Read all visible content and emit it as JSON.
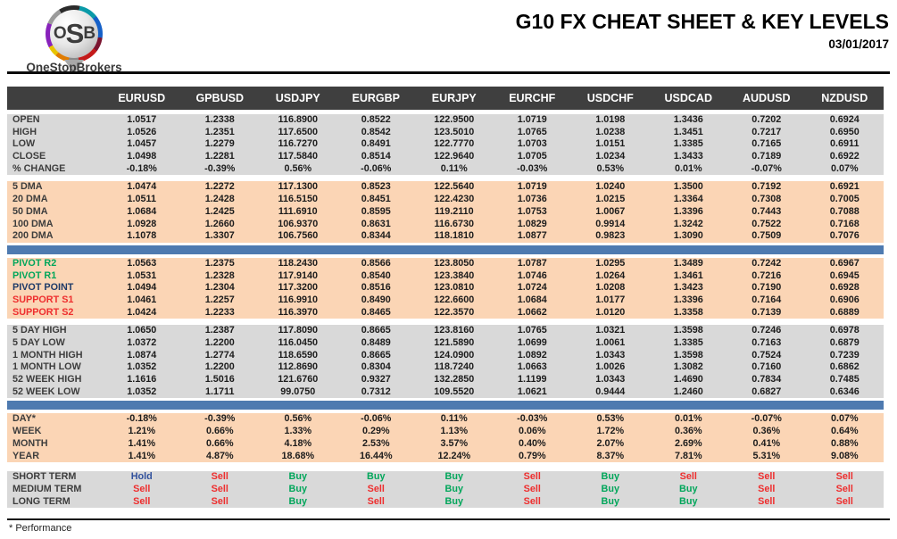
{
  "header": {
    "logo": {
      "letters": [
        "O",
        "S",
        "B"
      ],
      "name": "OneStopBrokers"
    },
    "title": "G10 FX CHEAT SHEET & KEY LEVELS",
    "date": "03/01/2017"
  },
  "table": {
    "columns": [
      "EURUSD",
      "GPBUSD",
      "USDJPY",
      "EURGBP",
      "EURJPY",
      "EURCHF",
      "USDCHF",
      "USDCAD",
      "AUDUSD",
      "NZDUSD"
    ],
    "sections": [
      {
        "id": "ohlc",
        "bg": "gray",
        "rows": [
          {
            "label": "OPEN",
            "values": [
              "1.0517",
              "1.2338",
              "116.8900",
              "0.8522",
              "122.9500",
              "1.0719",
              "1.0198",
              "1.3436",
              "0.7202",
              "0.6924"
            ]
          },
          {
            "label": "HIGH",
            "values": [
              "1.0526",
              "1.2351",
              "117.6500",
              "0.8542",
              "123.5010",
              "1.0765",
              "1.0238",
              "1.3451",
              "0.7217",
              "0.6950"
            ]
          },
          {
            "label": "LOW",
            "values": [
              "1.0457",
              "1.2279",
              "116.7270",
              "0.8491",
              "122.7770",
              "1.0703",
              "1.0151",
              "1.3385",
              "0.7165",
              "0.6911"
            ]
          },
          {
            "label": "CLOSE",
            "values": [
              "1.0498",
              "1.2281",
              "117.5840",
              "0.8514",
              "122.9640",
              "1.0705",
              "1.0234",
              "1.3433",
              "0.7189",
              "0.6922"
            ]
          },
          {
            "label": "% CHANGE",
            "values": [
              "-0.18%",
              "-0.39%",
              "0.56%",
              "-0.06%",
              "0.11%",
              "-0.03%",
              "0.53%",
              "0.01%",
              "-0.07%",
              "0.07%"
            ]
          }
        ]
      },
      {
        "id": "dma",
        "bg": "peach",
        "divider_after": true,
        "rows": [
          {
            "label": "5 DMA",
            "values": [
              "1.0474",
              "1.2272",
              "117.1300",
              "0.8523",
              "122.5640",
              "1.0719",
              "1.0240",
              "1.3500",
              "0.7192",
              "0.6921"
            ]
          },
          {
            "label": "20 DMA",
            "values": [
              "1.0511",
              "1.2428",
              "116.5150",
              "0.8451",
              "122.4230",
              "1.0736",
              "1.0215",
              "1.3364",
              "0.7308",
              "0.7005"
            ]
          },
          {
            "label": "50 DMA",
            "values": [
              "1.0684",
              "1.2425",
              "111.6910",
              "0.8595",
              "119.2110",
              "1.0753",
              "1.0067",
              "1.3396",
              "0.7443",
              "0.7088"
            ]
          },
          {
            "label": "100 DMA",
            "values": [
              "1.0928",
              "1.2660",
              "106.9370",
              "0.8631",
              "116.6730",
              "1.0829",
              "0.9914",
              "1.3242",
              "0.7522",
              "0.7168"
            ]
          },
          {
            "label": "200 DMA",
            "values": [
              "1.1078",
              "1.3307",
              "106.7560",
              "0.8344",
              "118.1810",
              "1.0877",
              "0.9823",
              "1.3090",
              "0.7509",
              "0.7076"
            ]
          }
        ]
      },
      {
        "id": "pivots",
        "bg": "peach",
        "rows": [
          {
            "label": "PIVOT R2",
            "label_color": "green",
            "values": [
              "1.0563",
              "1.2375",
              "118.2430",
              "0.8566",
              "123.8050",
              "1.0787",
              "1.0295",
              "1.3489",
              "0.7242",
              "0.6967"
            ]
          },
          {
            "label": "PIVOT R1",
            "label_color": "green",
            "values": [
              "1.0531",
              "1.2328",
              "117.9140",
              "0.8540",
              "123.3840",
              "1.0746",
              "1.0264",
              "1.3461",
              "0.7216",
              "0.6945"
            ]
          },
          {
            "label": "PIVOT POINT",
            "label_color": "navy",
            "values": [
              "1.0494",
              "1.2304",
              "117.3200",
              "0.8516",
              "123.0810",
              "1.0724",
              "1.0208",
              "1.3423",
              "0.7190",
              "0.6928"
            ]
          },
          {
            "label": "SUPPORT S1",
            "label_color": "red",
            "values": [
              "1.0461",
              "1.2257",
              "116.9910",
              "0.8490",
              "122.6600",
              "1.0684",
              "1.0177",
              "1.3396",
              "0.7164",
              "0.6906"
            ]
          },
          {
            "label": "SUPPORT S2",
            "label_color": "red",
            "values": [
              "1.0424",
              "1.2233",
              "116.3970",
              "0.8465",
              "122.3570",
              "1.0662",
              "1.0120",
              "1.3358",
              "0.7139",
              "0.6889"
            ]
          }
        ]
      },
      {
        "id": "ranges",
        "bg": "gray",
        "divider_after": true,
        "rows": [
          {
            "label": "5 DAY HIGH",
            "values": [
              "1.0650",
              "1.2387",
              "117.8090",
              "0.8665",
              "123.8160",
              "1.0765",
              "1.0321",
              "1.3598",
              "0.7246",
              "0.6978"
            ]
          },
          {
            "label": "5 DAY LOW",
            "values": [
              "1.0372",
              "1.2200",
              "116.0450",
              "0.8489",
              "121.5890",
              "1.0699",
              "1.0061",
              "1.3385",
              "0.7163",
              "0.6879"
            ]
          },
          {
            "label": "1 MONTH HIGH",
            "values": [
              "1.0874",
              "1.2774",
              "118.6590",
              "0.8665",
              "124.0900",
              "1.0892",
              "1.0343",
              "1.3598",
              "0.7524",
              "0.7239"
            ]
          },
          {
            "label": "1 MONTH LOW",
            "values": [
              "1.0352",
              "1.2200",
              "112.8690",
              "0.8304",
              "118.7240",
              "1.0663",
              "1.0026",
              "1.3082",
              "0.7160",
              "0.6862"
            ]
          },
          {
            "label": "52 WEEK HIGH",
            "values": [
              "1.1616",
              "1.5016",
              "121.6760",
              "0.9327",
              "132.2850",
              "1.1199",
              "1.0343",
              "1.4690",
              "0.7834",
              "0.7485"
            ]
          },
          {
            "label": "52 WEEK LOW",
            "values": [
              "1.0352",
              "1.1711",
              "99.0750",
              "0.7312",
              "109.5520",
              "1.0621",
              "0.9444",
              "1.2460",
              "0.6827",
              "0.6346"
            ]
          }
        ]
      },
      {
        "id": "performance",
        "bg": "peach",
        "rows": [
          {
            "label": "DAY*",
            "values": [
              "-0.18%",
              "-0.39%",
              "0.56%",
              "-0.06%",
              "0.11%",
              "-0.03%",
              "0.53%",
              "0.01%",
              "-0.07%",
              "0.07%"
            ]
          },
          {
            "label": "WEEK",
            "values": [
              "1.21%",
              "0.66%",
              "1.33%",
              "0.29%",
              "1.13%",
              "0.06%",
              "1.72%",
              "0.36%",
              "0.36%",
              "0.64%"
            ]
          },
          {
            "label": "MONTH",
            "values": [
              "1.41%",
              "0.66%",
              "4.18%",
              "2.53%",
              "3.57%",
              "0.40%",
              "2.07%",
              "2.69%",
              "0.41%",
              "0.88%"
            ]
          },
          {
            "label": "YEAR",
            "values": [
              "1.41%",
              "4.87%",
              "18.68%",
              "16.44%",
              "12.24%",
              "0.79%",
              "8.37%",
              "7.81%",
              "5.31%",
              "9.08%"
            ]
          }
        ]
      },
      {
        "id": "signals",
        "bg": "gray",
        "rows": [
          {
            "label": "SHORT TERM",
            "signal": true,
            "values": [
              "Hold",
              "Sell",
              "Buy",
              "Buy",
              "Buy",
              "Sell",
              "Buy",
              "Sell",
              "Sell",
              "Sell"
            ]
          },
          {
            "label": "MEDIUM TERM",
            "signal": true,
            "values": [
              "Sell",
              "Sell",
              "Buy",
              "Sell",
              "Buy",
              "Sell",
              "Buy",
              "Buy",
              "Sell",
              "Sell"
            ]
          },
          {
            "label": "LONG TERM",
            "signal": true,
            "values": [
              "Sell",
              "Sell",
              "Buy",
              "Sell",
              "Buy",
              "Sell",
              "Buy",
              "Buy",
              "Sell",
              "Sell"
            ]
          }
        ]
      }
    ]
  },
  "footer": {
    "note": "* Performance"
  },
  "colors": {
    "header_bar": "#3f3f3f",
    "gray_section": "#d9d9d9",
    "peach_section": "#fbd5b5",
    "divider_blue": "#4e7ab0",
    "green": "#00a65a",
    "red": "#ee2e2e",
    "navy": "#1f3a68",
    "buy": "#00a65a",
    "sell": "#ee2e2e",
    "hold": "#30509c"
  }
}
